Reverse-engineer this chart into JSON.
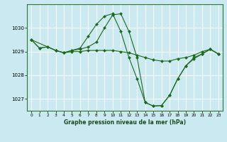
{
  "title": "Graphe pression niveau de la mer (hPa)",
  "background_color": "#cbe9f0",
  "plot_bg_color": "#cbe9f0",
  "grid_color": "#ffffff",
  "line_color": "#1a6b1a",
  "marker_color": "#1a6b1a",
  "xlim": [
    -0.5,
    23.5
  ],
  "ylim": [
    1026.5,
    1031.0
  ],
  "yticks": [
    1027,
    1028,
    1029,
    1030
  ],
  "xticks": [
    0,
    1,
    2,
    3,
    4,
    5,
    6,
    7,
    8,
    9,
    10,
    11,
    12,
    13,
    14,
    15,
    16,
    17,
    18,
    19,
    20,
    21,
    22,
    23
  ],
  "series": [
    {
      "x": [
        0,
        1,
        2,
        3,
        4,
        5,
        6,
        7,
        8,
        9,
        10,
        11,
        12,
        13,
        14,
        15,
        16,
        17,
        18,
        19,
        20,
        21,
        22,
        23
      ],
      "y": [
        1029.5,
        1029.15,
        1029.2,
        1029.05,
        1028.95,
        1029.0,
        1029.0,
        1029.05,
        1029.05,
        1029.05,
        1029.05,
        1029.0,
        1028.95,
        1028.85,
        1028.75,
        1028.65,
        1028.6,
        1028.6,
        1028.7,
        1028.75,
        1028.85,
        1029.0,
        1029.1,
        1028.9
      ],
      "marker": "D",
      "markersize": 2.0,
      "linewidth": 0.8
    },
    {
      "x": [
        0,
        1,
        2,
        3,
        4,
        5,
        6,
        7,
        8,
        9,
        10,
        11,
        12,
        13,
        14,
        15,
        16,
        17,
        18,
        19,
        20,
        21,
        22,
        23
      ],
      "y": [
        1029.5,
        1029.15,
        1029.2,
        1029.05,
        1028.95,
        1029.05,
        1029.15,
        1029.65,
        1030.15,
        1030.5,
        1030.6,
        1029.85,
        1028.75,
        1027.85,
        1026.85,
        1026.7,
        1026.72,
        1027.15,
        1027.85,
        1028.4,
        1028.75,
        1028.9,
        1029.1,
        1028.9
      ],
      "marker": "D",
      "markersize": 2.0,
      "linewidth": 0.8
    },
    {
      "x": [
        0,
        3,
        4,
        5,
        6,
        7,
        8,
        9,
        10,
        11,
        12,
        13,
        14,
        15,
        16,
        17,
        18,
        19,
        20,
        21,
        22,
        23
      ],
      "y": [
        1029.5,
        1029.05,
        1028.95,
        1029.05,
        1029.1,
        1029.2,
        1029.4,
        1030.0,
        1030.55,
        1030.6,
        1029.85,
        1028.75,
        1026.85,
        1026.7,
        1026.72,
        1027.15,
        1027.85,
        1028.4,
        1028.7,
        1028.9,
        1029.1,
        1028.9
      ],
      "marker": "D",
      "markersize": 2.0,
      "linewidth": 0.8
    }
  ]
}
